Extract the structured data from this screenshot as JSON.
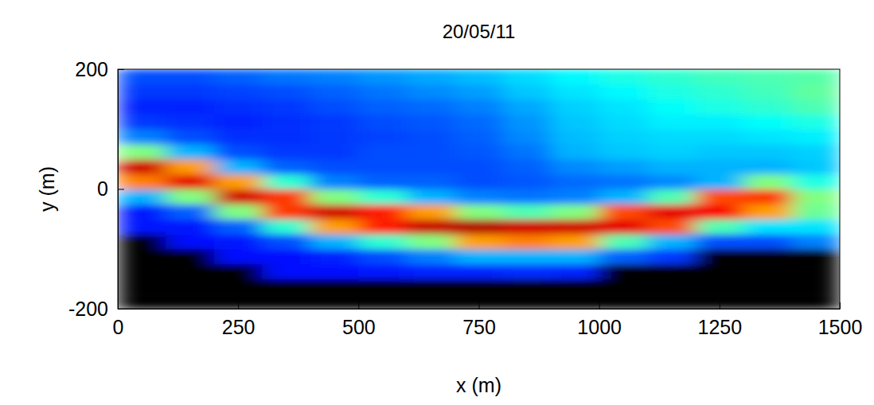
{
  "chart_data": {
    "type": "heatmap",
    "title": "20/05/11",
    "x_label": "x (m)",
    "y_label": "y (m)",
    "color": "jet",
    "xlim": [
      0,
      1500
    ],
    "ylim": [
      -200,
      200
    ],
    "xticks": [
      0,
      250,
      500,
      750,
      1000,
      1250,
      1500
    ],
    "yticks": [
      -200,
      0,
      200
    ],
    "zlim": [
      0,
      1
    ],
    "x": [
      50,
      150,
      250,
      350,
      450,
      550,
      650,
      750,
      850,
      950,
      1050,
      1150,
      1250,
      1350,
      1450
    ],
    "y": [
      -187.5,
      -162.5,
      -137.5,
      -112.5,
      -87.5,
      -62.5,
      -37.5,
      -12.5,
      12.5,
      37.5,
      62.5,
      87.5,
      112.5,
      137.5,
      162.5,
      187.5
    ],
    "z": [
      [
        null,
        null,
        null,
        null,
        null,
        null,
        null,
        null,
        null,
        null,
        null,
        null,
        null,
        null,
        null
      ],
      [
        null,
        null,
        null,
        null,
        null,
        null,
        null,
        null,
        null,
        null,
        null,
        null,
        null,
        null,
        null
      ],
      [
        null,
        null,
        null,
        0.14,
        0.14,
        0.15,
        0.16,
        0.16,
        0.17,
        0.16,
        null,
        null,
        null,
        null,
        null
      ],
      [
        null,
        null,
        0.14,
        0.14,
        0.16,
        0.2,
        0.25,
        0.3,
        0.3,
        0.3,
        0.22,
        0.18,
        null,
        null,
        null
      ],
      [
        null,
        0.14,
        0.15,
        0.2,
        0.3,
        0.42,
        0.5,
        0.72,
        0.75,
        0.72,
        0.45,
        0.3,
        0.2,
        0.2,
        0.25
      ],
      [
        0.15,
        0.15,
        0.22,
        0.42,
        0.72,
        0.85,
        0.93,
        0.95,
        0.92,
        0.92,
        0.9,
        0.8,
        0.45,
        0.35,
        0.35
      ],
      [
        0.15,
        0.22,
        0.5,
        0.82,
        0.92,
        0.85,
        0.72,
        0.5,
        0.45,
        0.5,
        0.8,
        0.9,
        0.88,
        0.72,
        0.48
      ],
      [
        0.3,
        0.5,
        0.92,
        0.82,
        0.5,
        0.42,
        0.3,
        0.25,
        0.24,
        0.25,
        0.3,
        0.45,
        0.8,
        0.82,
        0.5
      ],
      [
        0.75,
        0.9,
        0.72,
        0.42,
        0.25,
        0.22,
        0.22,
        0.2,
        0.21,
        0.23,
        0.24,
        0.26,
        0.3,
        0.5,
        0.4
      ],
      [
        0.92,
        0.72,
        0.3,
        0.22,
        0.2,
        0.2,
        0.2,
        0.2,
        0.22,
        0.26,
        0.28,
        0.3,
        0.3,
        0.3,
        0.32
      ],
      [
        0.5,
        0.3,
        0.2,
        0.18,
        0.18,
        0.2,
        0.2,
        0.21,
        0.24,
        0.3,
        0.32,
        0.33,
        0.32,
        0.32,
        0.33
      ],
      [
        0.25,
        0.2,
        0.17,
        0.17,
        0.18,
        0.19,
        0.2,
        0.22,
        0.26,
        0.31,
        0.33,
        0.34,
        0.34,
        0.35,
        0.36
      ],
      [
        0.18,
        0.17,
        0.16,
        0.17,
        0.18,
        0.2,
        0.21,
        0.23,
        0.27,
        0.32,
        0.34,
        0.36,
        0.36,
        0.38,
        0.4
      ],
      [
        0.16,
        0.16,
        0.17,
        0.18,
        0.2,
        0.22,
        0.23,
        0.25,
        0.29,
        0.33,
        0.35,
        0.38,
        0.4,
        0.42,
        0.45
      ],
      [
        0.18,
        0.18,
        0.19,
        0.2,
        0.22,
        0.24,
        0.26,
        0.28,
        0.32,
        0.35,
        0.37,
        0.4,
        0.42,
        0.44,
        0.47
      ],
      [
        0.2,
        0.2,
        0.22,
        0.24,
        0.25,
        0.27,
        0.29,
        0.31,
        0.34,
        0.37,
        0.4,
        0.42,
        0.44,
        0.45,
        0.46
      ]
    ]
  }
}
